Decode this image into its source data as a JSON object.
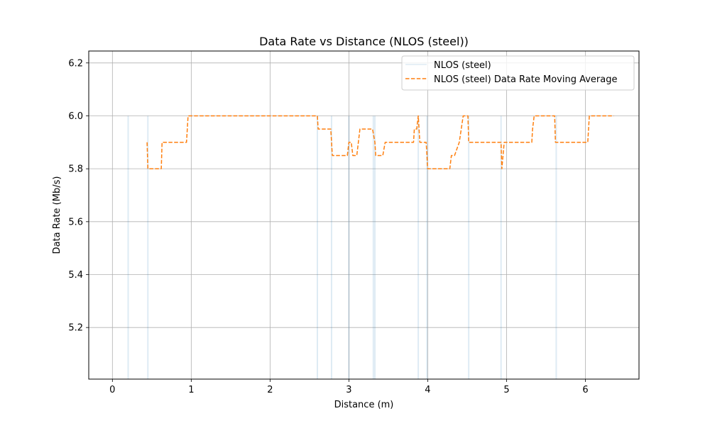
{
  "chart_data": {
    "type": "line",
    "title": "Data Rate vs Distance (NLOS (steel))",
    "xlabel": "Distance (m)",
    "ylabel": "Data Rate (Mb/s)",
    "xlim": [
      -0.3,
      6.68
    ],
    "ylim": [
      5.005,
      6.245
    ],
    "xticks": [
      0,
      1,
      2,
      3,
      4,
      5,
      6
    ],
    "xtick_labels": [
      "0",
      "1",
      "2",
      "3",
      "4",
      "5",
      "6"
    ],
    "yticks": [
      5.2,
      5.4,
      5.6,
      5.8,
      6.0,
      6.2
    ],
    "ytick_labels": [
      "5.2",
      "5.4",
      "5.6",
      "5.8",
      "6.0",
      "6.2"
    ],
    "grid": true,
    "legend_position": "top-right",
    "series": [
      {
        "name": "NLOS (steel)",
        "style": "solid",
        "color": "#1f77b4",
        "alpha": 0.15,
        "spikes": [
          {
            "x": 0.2,
            "low": 5.005,
            "high": 6.0
          },
          {
            "x": 0.45,
            "low": 5.005,
            "high": 6.0
          },
          {
            "x": 2.6,
            "low": 5.005,
            "high": 6.0
          },
          {
            "x": 2.78,
            "low": 5.005,
            "high": 6.0
          },
          {
            "x": 3.0,
            "low": 5.005,
            "high": 6.0
          },
          {
            "x": 3.31,
            "low": 5.005,
            "high": 6.0
          },
          {
            "x": 3.33,
            "low": 5.005,
            "high": 6.0
          },
          {
            "x": 3.88,
            "low": 5.005,
            "high": 6.0
          },
          {
            "x": 3.99,
            "low": 5.005,
            "high": 6.0
          },
          {
            "x": 4.52,
            "low": 5.005,
            "high": 6.0
          },
          {
            "x": 4.93,
            "low": 5.005,
            "high": 6.0
          },
          {
            "x": 5.63,
            "low": 5.005,
            "high": 6.0
          }
        ]
      },
      {
        "name": "NLOS (steel) Data Rate Moving Average",
        "style": "dashed",
        "color": "#ff7f0e",
        "x": [
          0.44,
          0.45,
          0.62,
          0.63,
          0.94,
          0.96,
          2.6,
          2.61,
          2.77,
          2.79,
          2.98,
          3.0,
          3.03,
          3.05,
          3.1,
          3.14,
          3.3,
          3.33,
          3.34,
          3.43,
          3.46,
          3.82,
          3.83,
          3.86,
          3.88,
          3.9,
          3.98,
          4.0,
          4.28,
          4.3,
          4.34,
          4.4,
          4.45,
          4.51,
          4.52,
          4.93,
          4.94,
          4.97,
          5.32,
          5.33,
          5.35,
          5.61,
          5.62,
          6.03,
          6.05,
          6.36
        ],
        "y": [
          5.9,
          5.8,
          5.8,
          5.9,
          5.9,
          6.0,
          6.0,
          5.95,
          5.95,
          5.85,
          5.85,
          5.9,
          5.9,
          5.85,
          5.85,
          5.95,
          5.95,
          5.9,
          5.85,
          5.85,
          5.9,
          5.9,
          5.95,
          5.95,
          6.0,
          5.9,
          5.9,
          5.8,
          5.8,
          5.85,
          5.85,
          5.9,
          6.0,
          6.0,
          5.9,
          5.9,
          5.8,
          5.9,
          5.9,
          5.95,
          6.0,
          6.0,
          5.9,
          5.9,
          6.0,
          6.0
        ]
      }
    ]
  }
}
